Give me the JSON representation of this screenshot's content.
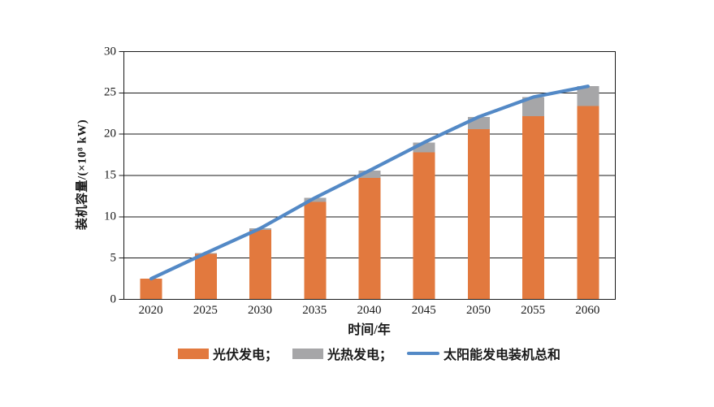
{
  "chart_data": {
    "type": "bar",
    "subtype": "stacked-bars-with-total-line",
    "title": "",
    "categories": [
      "2020",
      "2025",
      "2030",
      "2035",
      "2040",
      "2045",
      "2050",
      "2055",
      "2060"
    ],
    "series": [
      {
        "name": "光伏发电",
        "type": "bar",
        "color": "#E2793E",
        "values": [
          2.5,
          5.5,
          8.4,
          11.8,
          14.7,
          17.8,
          20.6,
          22.2,
          23.4
        ]
      },
      {
        "name": "光热发电",
        "type": "bar",
        "color": "#A6A6A8",
        "values": [
          0,
          0.1,
          0.2,
          0.5,
          0.9,
          1.2,
          1.5,
          2.3,
          2.4
        ]
      },
      {
        "name": "太阳能发电装机总和",
        "type": "line",
        "color": "#5389C6",
        "values": [
          2.5,
          5.6,
          8.6,
          12.3,
          15.6,
          19.0,
          22.1,
          24.5,
          25.8
        ]
      }
    ],
    "xlabel": "时间/年",
    "ylabel": "装机容量/(×10⁸ kW)",
    "ylim": [
      0,
      30
    ],
    "yticks": [
      0,
      5,
      10,
      15,
      20,
      25,
      30
    ],
    "grid": true,
    "bar_stacked": true,
    "legend_position": "bottom"
  },
  "legend": {
    "items": [
      {
        "label": "光伏发电；",
        "swatch": "bar",
        "color": "#E2793E"
      },
      {
        "label": "光热发电；",
        "swatch": "bar",
        "color": "#A6A6A8"
      },
      {
        "label": "太阳能发电装机总和",
        "swatch": "line",
        "color": "#5389C6"
      }
    ]
  },
  "colors": {
    "axis": "#1A1A1A",
    "text": "#1A1A1A",
    "background": "#FFFFFF"
  }
}
